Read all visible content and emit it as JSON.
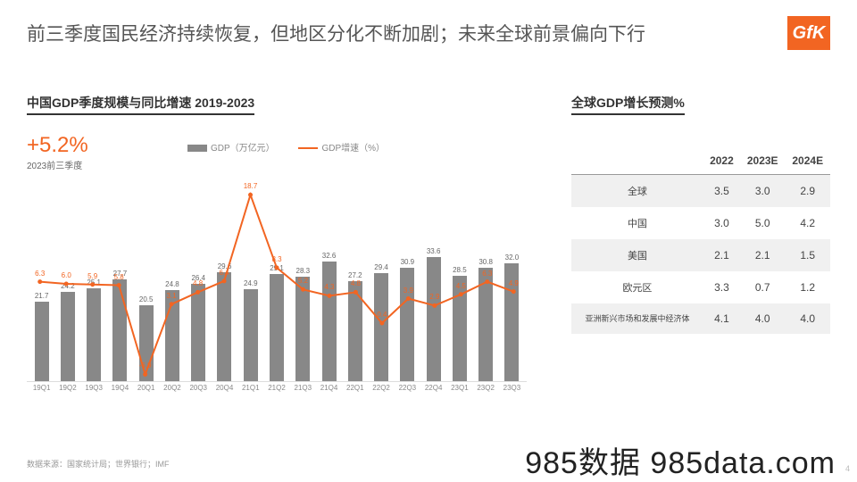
{
  "title": "前三季度国民经济持续恢复，但地区分化不断加剧；未来全球前景偏向下行",
  "logo_text": "GfK",
  "chart": {
    "title": "中国GDP季度规模与同比增速 2019-2023",
    "kpi_value": "+5.2%",
    "kpi_sub": "2023前三季度",
    "legend_bar": "GDP（万亿元）",
    "legend_line": "GDP增速（%）",
    "bar_color": "#888888",
    "line_color": "#f26522",
    "bar_max": 40,
    "line_min": -8,
    "line_max": 20,
    "categories": [
      "19Q1",
      "19Q2",
      "19Q3",
      "19Q4",
      "20Q1",
      "20Q2",
      "20Q3",
      "20Q4",
      "21Q1",
      "21Q2",
      "21Q3",
      "21Q4",
      "22Q1",
      "22Q2",
      "22Q3",
      "22Q4",
      "23Q1",
      "23Q2",
      "23Q3"
    ],
    "bars": [
      21.7,
      24.2,
      25.1,
      27.7,
      20.5,
      24.8,
      26.4,
      29.6,
      24.9,
      29.1,
      28.3,
      32.6,
      27.2,
      29.4,
      30.9,
      33.6,
      28.5,
      30.8,
      32.0
    ],
    "line": [
      6.3,
      6.0,
      5.9,
      5.8,
      -6.9,
      3.1,
      4.8,
      6.4,
      18.7,
      8.3,
      5.2,
      4.3,
      4.8,
      0.4,
      3.9,
      2.9,
      4.5,
      6.3,
      4.9
    ],
    "line_labels": [
      "6.3",
      "6.0",
      "5.9",
      "5.8",
      "-6.9",
      "3.1",
      "4.8",
      "6.4",
      "18.7",
      "8.3",
      "5.2",
      "4.3",
      "4.8",
      "0.4",
      "3.9",
      "2.9",
      "4.5",
      "6.3",
      "4.9"
    ]
  },
  "table": {
    "title": "全球GDP增长预测%",
    "columns": [
      "",
      "2022",
      "2023E",
      "2024E"
    ],
    "rows": [
      [
        "全球",
        "3.5",
        "3.0",
        "2.9"
      ],
      [
        "中国",
        "3.0",
        "5.0",
        "4.2"
      ],
      [
        "美国",
        "2.1",
        "2.1",
        "1.5"
      ],
      [
        "欧元区",
        "3.3",
        "0.7",
        "1.2"
      ],
      [
        "亚洲新兴市场和发展中经济体",
        "4.1",
        "4.0",
        "4.0"
      ]
    ]
  },
  "footer": "数据来源：国家统计局；世界银行；IMF",
  "watermark": "985数据 985data.com",
  "page_num": "4"
}
